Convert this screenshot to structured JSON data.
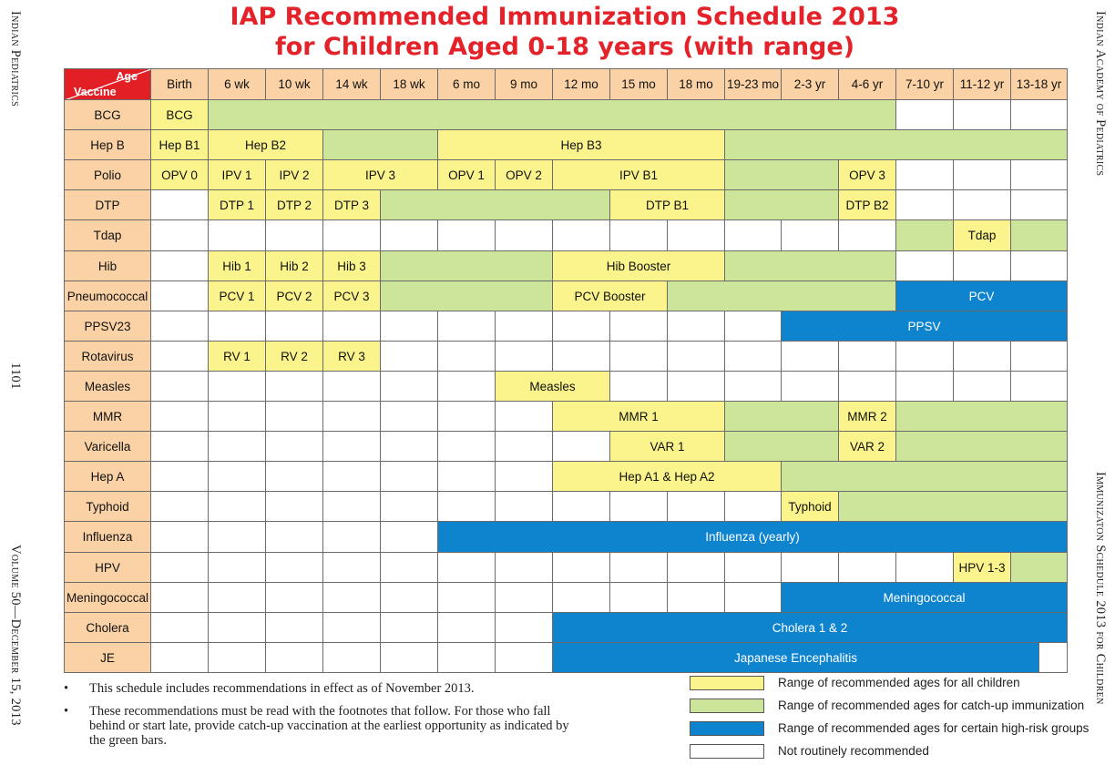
{
  "title": {
    "line1": "IAP Recommended Immunization Schedule 2013",
    "line2": "for Children Aged 0-18 years (with range)"
  },
  "margins": {
    "left_top": "Indian Pediatrics",
    "left_page": "1101",
    "left_bottom": "Volume 50—December 15, 2013",
    "right_top": "Indian Academy of Pediatrics",
    "right_bottom": "Immunizaton Schedule 2013 for Children"
  },
  "colors": {
    "title_red": "#e4222a",
    "yellow": "#fbf48c",
    "green": "#cde49b",
    "blue": "#0e84cf",
    "header_orange": "#fbd2a5"
  },
  "table": {
    "corner_age": "Age",
    "corner_vaccine": "Vaccine",
    "ages": [
      "Birth",
      "6 wk",
      "10 wk",
      "14 wk",
      "18 wk",
      "6 mo",
      "9 mo",
      "12 mo",
      "15 mo",
      "18 mo",
      "19-23 mo",
      "2-3 yr",
      "4-6 yr",
      "7-10 yr",
      "11-12 yr",
      "13-18 yr"
    ],
    "rows": [
      {
        "vaccine": "BCG",
        "segments": [
          [
            "y",
            1,
            "BCG"
          ],
          [
            "g",
            12,
            ""
          ],
          [
            "w",
            3,
            ""
          ]
        ]
      },
      {
        "vaccine": "Hep B",
        "segments": [
          [
            "y",
            1,
            "Hep B1"
          ],
          [
            "y",
            2,
            "Hep B2"
          ],
          [
            "g",
            2,
            ""
          ],
          [
            "y",
            5,
            "Hep B3"
          ],
          [
            "g",
            6,
            ""
          ]
        ]
      },
      {
        "vaccine": "Polio",
        "segments": [
          [
            "y",
            1,
            "OPV 0"
          ],
          [
            "y",
            1,
            "IPV 1"
          ],
          [
            "y",
            1,
            "IPV 2"
          ],
          [
            "y",
            2,
            "IPV 3"
          ],
          [
            "y",
            1,
            "OPV 1"
          ],
          [
            "y",
            1,
            "OPV 2"
          ],
          [
            "y",
            3,
            "IPV B1"
          ],
          [
            "g",
            2,
            ""
          ],
          [
            "y",
            1,
            "OPV 3"
          ],
          [
            "w",
            3,
            ""
          ]
        ]
      },
      {
        "vaccine": "DTP",
        "segments": [
          [
            "w",
            1,
            ""
          ],
          [
            "y",
            1,
            "DTP 1"
          ],
          [
            "y",
            1,
            "DTP 2"
          ],
          [
            "y",
            1,
            "DTP 3"
          ],
          [
            "g",
            4,
            ""
          ],
          [
            "y",
            2,
            "DTP B1"
          ],
          [
            "g",
            2,
            ""
          ],
          [
            "y",
            1,
            "DTP B2"
          ],
          [
            "w",
            3,
            ""
          ]
        ]
      },
      {
        "vaccine": "Tdap",
        "segments": [
          [
            "w",
            13,
            ""
          ],
          [
            "g",
            1,
            ""
          ],
          [
            "y",
            1,
            "Tdap"
          ],
          [
            "g",
            1,
            ""
          ]
        ]
      },
      {
        "vaccine": "Hib",
        "segments": [
          [
            "w",
            1,
            ""
          ],
          [
            "y",
            1,
            "Hib 1"
          ],
          [
            "y",
            1,
            "Hib 2"
          ],
          [
            "y",
            1,
            "Hib 3"
          ],
          [
            "g",
            3,
            ""
          ],
          [
            "y",
            3,
            "Hib Booster"
          ],
          [
            "g",
            3,
            ""
          ],
          [
            "w",
            3,
            ""
          ]
        ]
      },
      {
        "vaccine": "Pneumococcal",
        "segments": [
          [
            "w",
            1,
            ""
          ],
          [
            "y",
            1,
            "PCV 1"
          ],
          [
            "y",
            1,
            "PCV 2"
          ],
          [
            "y",
            1,
            "PCV 3"
          ],
          [
            "g",
            3,
            ""
          ],
          [
            "y",
            2,
            "PCV Booster"
          ],
          [
            "g",
            4,
            ""
          ],
          [
            "b",
            3,
            "PCV"
          ]
        ]
      },
      {
        "vaccine": "PPSV23",
        "segments": [
          [
            "w",
            11,
            ""
          ],
          [
            "b",
            5,
            "PPSV"
          ]
        ]
      },
      {
        "vaccine": "Rotavirus",
        "segments": [
          [
            "w",
            1,
            ""
          ],
          [
            "y",
            1,
            "RV 1"
          ],
          [
            "y",
            1,
            "RV 2"
          ],
          [
            "y",
            1,
            "RV 3"
          ],
          [
            "w",
            12,
            ""
          ]
        ]
      },
      {
        "vaccine": "Measles",
        "segments": [
          [
            "w",
            6,
            ""
          ],
          [
            "y",
            2,
            "Measles"
          ],
          [
            "w",
            8,
            ""
          ]
        ]
      },
      {
        "vaccine": "MMR",
        "segments": [
          [
            "w",
            7,
            ""
          ],
          [
            "y",
            3,
            "MMR 1"
          ],
          [
            "g",
            2,
            ""
          ],
          [
            "y",
            1,
            "MMR 2"
          ],
          [
            "g",
            3,
            ""
          ]
        ]
      },
      {
        "vaccine": "Varicella",
        "segments": [
          [
            "w",
            8,
            ""
          ],
          [
            "y",
            2,
            "VAR 1"
          ],
          [
            "g",
            2,
            ""
          ],
          [
            "y",
            1,
            "VAR 2"
          ],
          [
            "g",
            3,
            ""
          ]
        ]
      },
      {
        "vaccine": "Hep A",
        "segments": [
          [
            "w",
            7,
            ""
          ],
          [
            "y",
            4,
            "Hep A1 & Hep A2"
          ],
          [
            "g",
            5,
            ""
          ]
        ]
      },
      {
        "vaccine": "Typhoid",
        "segments": [
          [
            "w",
            11,
            ""
          ],
          [
            "y",
            1,
            "Typhoid"
          ],
          [
            "g",
            4,
            ""
          ]
        ]
      },
      {
        "vaccine": "Influenza",
        "segments": [
          [
            "w",
            5,
            ""
          ],
          [
            "b",
            11,
            "Influenza (yearly)"
          ]
        ]
      },
      {
        "vaccine": "HPV",
        "segments": [
          [
            "w",
            14,
            ""
          ],
          [
            "y",
            1,
            "HPV 1-3"
          ],
          [
            "g",
            1,
            ""
          ]
        ]
      },
      {
        "vaccine": "Meningococcal",
        "segments": [
          [
            "w",
            11,
            ""
          ],
          [
            "b",
            5,
            "Meningococcal"
          ]
        ]
      },
      {
        "vaccine": "Cholera",
        "segments": [
          [
            "w",
            7,
            ""
          ],
          [
            "b",
            9,
            "Cholera 1 & 2"
          ]
        ]
      },
      {
        "vaccine": "JE",
        "segments": [
          [
            "w",
            7,
            ""
          ],
          [
            "b",
            8.5,
            "Japanese Encephalitis"
          ],
          [
            "w",
            0.5,
            ""
          ]
        ]
      }
    ]
  },
  "notes": [
    "This schedule includes recommendations in effect as of November 2013.",
    "These recommendations must be read with the footnotes that follow. For those who fall behind or start late, provide catch-up vaccination at the earliest opportunity as indicated by the green bars."
  ],
  "legend": [
    {
      "key": "y",
      "label": "Range of recommended ages for all children"
    },
    {
      "key": "g",
      "label": "Range of recommended ages for catch-up immunization"
    },
    {
      "key": "b",
      "label": "Range of recommended ages for certain high-risk groups"
    },
    {
      "key": "w",
      "label": "Not routinely recommended"
    }
  ]
}
